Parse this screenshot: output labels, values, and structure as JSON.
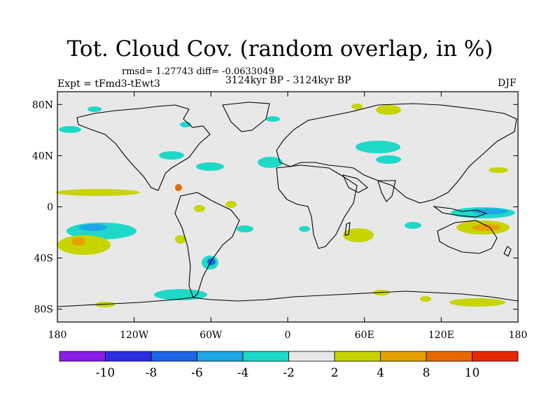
{
  "header": {
    "title": "Tot. Cloud Cov. (random overlap, in %)",
    "stats_line": "rmsd= 1.27743 diff= -0.0633049",
    "left_label": "Expt = tFmd3-tEwt3",
    "center_label": "3124kyr BP - 3124kyr BP",
    "right_label": "DJF"
  },
  "map": {
    "lat_ticks": [
      {
        "value": 80,
        "label": "80N"
      },
      {
        "value": 40,
        "label": "40N"
      },
      {
        "value": 0,
        "label": "0"
      },
      {
        "value": -40,
        "label": "40S"
      },
      {
        "value": -80,
        "label": "80S"
      }
    ],
    "lon_ticks": [
      {
        "value": -180,
        "label": "180"
      },
      {
        "value": -120,
        "label": "120W"
      },
      {
        "value": -60,
        "label": "60W"
      },
      {
        "value": 0,
        "label": "0"
      },
      {
        "value": 60,
        "label": "60E"
      },
      {
        "value": 120,
        "label": "120E"
      },
      {
        "value": 180,
        "label": "180"
      }
    ],
    "lat_range": [
      -90,
      90
    ],
    "lon_range": [
      -180,
      180
    ],
    "background_color": "#e8e8e8"
  },
  "colorbar": {
    "colors": [
      "#8a1ee6",
      "#2a2ee0",
      "#1e64e6",
      "#1ea6e6",
      "#1fd8c8",
      "#e8e8e8",
      "#c8d400",
      "#e6a000",
      "#e66a00",
      "#e62a00"
    ],
    "labels": [
      "-10",
      "-8",
      "-6",
      "-4",
      "-2",
      "2",
      "4",
      "8",
      "10"
    ]
  }
}
